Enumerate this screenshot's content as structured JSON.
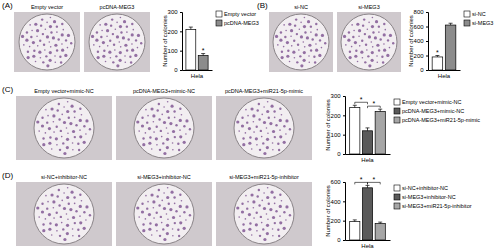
{
  "chart_data": [
    {
      "type": "bar",
      "title": "(A)",
      "y_label": "Number of colonies",
      "categories": [
        "Hela"
      ],
      "series": [
        {
          "name": "Empty vector",
          "color": "#ffffff",
          "values": [
            210
          ],
          "errors": [
            12
          ]
        },
        {
          "name": "pcDNA-MEG3",
          "color": "#8c8c8c",
          "values": [
            75
          ],
          "errors": [
            10
          ]
        }
      ],
      "ylim": [
        0,
        300
      ],
      "yticks": [
        0,
        100,
        200,
        300
      ],
      "annotations": [
        {
          "text": "*",
          "between": [
            1
          ]
        }
      ]
    },
    {
      "type": "bar",
      "title": "(B)",
      "y_label": "Number of colonies",
      "categories": [
        "Hela"
      ],
      "series": [
        {
          "name": "si-NC",
          "color": "#ffffff",
          "values": [
            180
          ],
          "errors": [
            20
          ]
        },
        {
          "name": "si-MEG3",
          "color": "#8c8c8c",
          "values": [
            620
          ],
          "errors": [
            25
          ]
        }
      ],
      "ylim": [
        0,
        800
      ],
      "yticks": [
        0,
        200,
        400,
        600,
        800
      ],
      "annotations": [
        {
          "text": "*",
          "between": [
            0
          ]
        }
      ]
    },
    {
      "type": "bar",
      "title": "(C)",
      "y_label": "Number of colonies",
      "categories": [
        "Hela"
      ],
      "series": [
        {
          "name": "Empty vector+mimic-NC",
          "color": "#ffffff",
          "values": [
            240
          ],
          "errors": [
            12
          ]
        },
        {
          "name": "pcDNA-MEG3+mimic-NC",
          "color": "#5a5a5a",
          "values": [
            120
          ],
          "errors": [
            15
          ]
        },
        {
          "name": "pcDNA-MEG3+miR21-5p-mimic",
          "color": "#a6a6a6",
          "values": [
            220
          ],
          "errors": [
            12
          ]
        }
      ],
      "ylim": [
        0,
        300
      ],
      "yticks": [
        0,
        100,
        200,
        300
      ],
      "annotations": [
        {
          "text": "*",
          "between": [
            0,
            1
          ]
        },
        {
          "text": "*",
          "between": [
            1,
            2
          ]
        }
      ]
    },
    {
      "type": "bar",
      "title": "(D)",
      "y_label": "Number of colonies",
      "categories": [
        "Hela"
      ],
      "series": [
        {
          "name": "si-NC+inhibitor-NC",
          "color": "#ffffff",
          "values": [
            190
          ],
          "errors": [
            18
          ]
        },
        {
          "name": "si-MEG3+inhibitor-NC",
          "color": "#5a5a5a",
          "values": [
            540
          ],
          "errors": [
            25
          ]
        },
        {
          "name": "si-MEG3+miR21-5p-inhibitor",
          "color": "#a6a6a6",
          "values": [
            170
          ],
          "errors": [
            15
          ]
        }
      ],
      "ylim": [
        0,
        600
      ],
      "yticks": [
        0,
        200,
        400,
        600
      ],
      "annotations": [
        {
          "text": "*",
          "between": [
            0,
            1
          ]
        },
        {
          "text": "*",
          "between": [
            1,
            2
          ]
        }
      ]
    }
  ]
}
